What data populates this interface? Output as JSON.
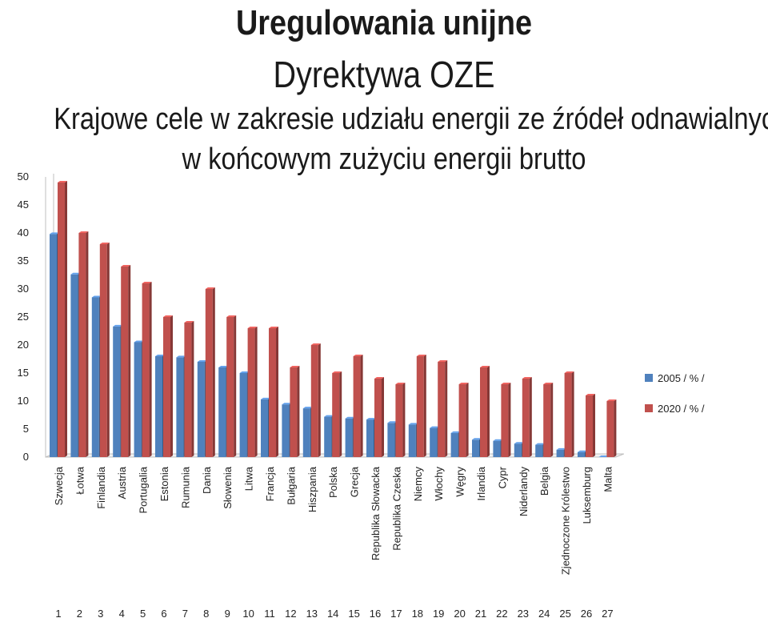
{
  "titles": {
    "main": "Uregulowania unijne",
    "sub": "Dyrektywa OZE",
    "line3": "Krajowe cele w zakresie udziału energii ze źródeł odnawialnych",
    "line4": "w końcowym zużyciu energii brutto"
  },
  "chart_data": {
    "type": "bar",
    "style": "3d-clustered",
    "categories": [
      "Szwecja",
      "Łotwa",
      "Finlandia",
      "Austria",
      "Portugalia",
      "Estonia",
      "Rumunia",
      "Dania",
      "Słowenia",
      "Litwa",
      "Francja",
      "Bułgaria",
      "Hiszpania",
      "Polska",
      "Grecja",
      "Republika Słowacka",
      "Republika Czeska",
      "Niemcy",
      "Włochy",
      "Węgry",
      "Irlandia",
      "Cypr",
      "Niderlandy",
      "Belgia",
      "Zjednoczone Królestwo",
      "Luksemburg",
      "Malta"
    ],
    "index_labels": [
      "1",
      "2",
      "3",
      "4",
      "5",
      "6",
      "7",
      "8",
      "9",
      "10",
      "11",
      "12",
      "13",
      "14",
      "15",
      "16",
      "17",
      "18",
      "19",
      "20",
      "21",
      "22",
      "23",
      "24",
      "25",
      "26",
      "27"
    ],
    "series": [
      {
        "name": "2005 / % /",
        "color": "#4f81bd",
        "values": [
          39.8,
          32.6,
          28.5,
          23.3,
          20.5,
          18.0,
          17.8,
          17.0,
          16.0,
          15.0,
          10.3,
          9.4,
          8.7,
          7.2,
          6.9,
          6.7,
          6.1,
          5.8,
          5.2,
          4.3,
          3.1,
          2.9,
          2.4,
          2.2,
          1.3,
          0.9,
          0.0
        ]
      },
      {
        "name": "2020 / % /",
        "color": "#c0504d",
        "values": [
          49,
          40,
          38,
          34,
          31,
          25,
          24,
          30,
          25,
          23,
          23,
          16,
          20,
          15,
          18,
          14,
          13,
          18,
          17,
          13,
          16,
          13,
          14,
          13,
          15,
          11,
          10
        ]
      }
    ],
    "ylim": [
      0,
      50
    ],
    "yticks": [
      0,
      5,
      10,
      15,
      20,
      25,
      30,
      35,
      40,
      45,
      50
    ],
    "grid": false,
    "legend_position": "right"
  }
}
